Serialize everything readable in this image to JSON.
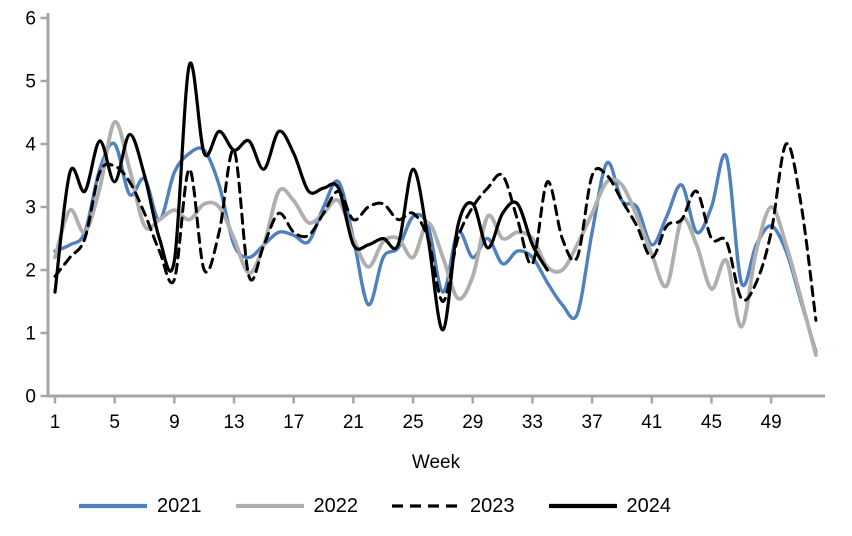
{
  "page": {
    "background": "#ffffff"
  },
  "chart_data": {
    "type": "line",
    "title": "",
    "xlabel": "Week",
    "ylabel": "",
    "x_tick_labels": [
      1,
      5,
      9,
      13,
      17,
      21,
      25,
      29,
      33,
      37,
      41,
      45,
      49
    ],
    "y_tick_labels": [
      0,
      1,
      2,
      3,
      4,
      5,
      6
    ],
    "xlim": [
      1,
      53
    ],
    "ylim": [
      0,
      6
    ],
    "grid": false,
    "legend_position": "bottom",
    "axis_color": "#A6A6A6",
    "text_color": "#000000",
    "smoothed": true,
    "x_start_week": 1,
    "series": [
      {
        "name": "2021",
        "color": "#4F81BD",
        "style": "solid",
        "width": 3.4,
        "values": [
          2.3,
          2.4,
          2.6,
          3.6,
          4.0,
          3.2,
          3.45,
          2.8,
          3.55,
          3.85,
          3.9,
          3.35,
          2.4,
          2.2,
          2.4,
          2.6,
          2.55,
          2.45,
          3.0,
          3.4,
          2.5,
          1.45,
          2.2,
          2.35,
          2.85,
          2.7,
          1.65,
          2.6,
          2.2,
          2.5,
          2.1,
          2.3,
          2.2,
          1.8,
          1.45,
          1.3,
          2.6,
          3.7,
          3.1,
          3.0,
          2.4,
          2.85,
          3.35,
          2.6,
          3.0,
          3.8,
          1.8,
          2.4,
          2.7,
          2.3,
          1.5,
          0.7
        ]
      },
      {
        "name": "2022",
        "color": "#AFAFAF",
        "style": "solid",
        "width": 3.8,
        "values": [
          2.2,
          2.95,
          2.6,
          3.3,
          4.35,
          3.6,
          2.7,
          2.8,
          2.95,
          2.8,
          3.05,
          3.0,
          2.5,
          1.95,
          2.4,
          3.25,
          3.1,
          2.75,
          2.9,
          3.1,
          2.5,
          2.05,
          2.45,
          2.5,
          2.2,
          2.75,
          2.2,
          1.55,
          1.9,
          2.85,
          2.5,
          2.6,
          2.5,
          2.05,
          2.0,
          2.4,
          2.9,
          3.4,
          3.35,
          2.85,
          2.25,
          1.75,
          2.8,
          2.4,
          1.7,
          2.15,
          1.1,
          2.3,
          3.0,
          2.4,
          1.55,
          0.65
        ]
      },
      {
        "name": "2023",
        "color": "#000000",
        "style": "dashed",
        "width": 3.0,
        "values": [
          1.9,
          2.2,
          2.5,
          3.55,
          3.65,
          3.4,
          2.9,
          2.3,
          1.85,
          3.6,
          2.0,
          2.6,
          3.9,
          1.9,
          2.4,
          2.9,
          2.6,
          2.55,
          2.9,
          3.25,
          2.8,
          3.0,
          3.05,
          2.8,
          2.9,
          2.5,
          1.5,
          2.5,
          3.0,
          3.3,
          3.5,
          2.8,
          2.1,
          3.4,
          2.5,
          2.2,
          3.5,
          3.5,
          3.1,
          2.7,
          2.2,
          2.7,
          2.8,
          3.25,
          2.5,
          2.45,
          1.55,
          1.8,
          2.6,
          4.0,
          3.05,
          1.2
        ]
      },
      {
        "name": "2024",
        "color": "#000000",
        "style": "solid",
        "width": 3.2,
        "values": [
          1.65,
          3.55,
          3.25,
          4.05,
          3.4,
          4.15,
          3.5,
          2.5,
          2.15,
          5.25,
          3.85,
          4.2,
          3.9,
          4.05,
          3.6,
          4.2,
          3.85,
          3.25,
          3.3,
          3.3,
          2.4,
          2.4,
          2.5,
          2.4,
          3.6,
          2.5,
          1.05,
          2.7,
          3.05,
          2.35,
          2.9,
          3.05,
          2.4,
          2.0
        ]
      }
    ]
  }
}
